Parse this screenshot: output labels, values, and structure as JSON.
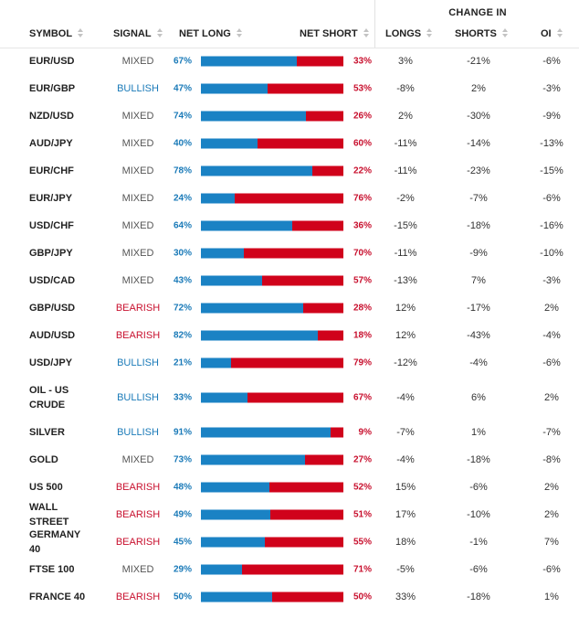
{
  "headers": {
    "change_in": "CHANGE IN",
    "symbol": "SYMBOL",
    "signal": "SIGNAL",
    "net_long": "NET LONG",
    "net_short": "NET SHORT",
    "longs": "LONGS",
    "shorts": "SHORTS",
    "oi": "OI"
  },
  "colors": {
    "long": "#1a82c4",
    "short": "#d0021b",
    "bullish": "#1a7ab8",
    "bearish": "#c8102e",
    "mixed": "#555555"
  },
  "rows": [
    {
      "symbol": "EUR/USD",
      "signal": "MIXED",
      "net_long": "67%",
      "net_long_value": 67,
      "net_short": "33%",
      "longs": "3%",
      "shorts": "-21%",
      "oi": "-6%"
    },
    {
      "symbol": "EUR/GBP",
      "signal": "BULLISH",
      "net_long": "47%",
      "net_long_value": 47,
      "net_short": "53%",
      "longs": "-8%",
      "shorts": "2%",
      "oi": "-3%"
    },
    {
      "symbol": "NZD/USD",
      "signal": "MIXED",
      "net_long": "74%",
      "net_long_value": 74,
      "net_short": "26%",
      "longs": "2%",
      "shorts": "-30%",
      "oi": "-9%"
    },
    {
      "symbol": "AUD/JPY",
      "signal": "MIXED",
      "net_long": "40%",
      "net_long_value": 40,
      "net_short": "60%",
      "longs": "-11%",
      "shorts": "-14%",
      "oi": "-13%"
    },
    {
      "symbol": "EUR/CHF",
      "signal": "MIXED",
      "net_long": "78%",
      "net_long_value": 78,
      "net_short": "22%",
      "longs": "-11%",
      "shorts": "-23%",
      "oi": "-15%"
    },
    {
      "symbol": "EUR/JPY",
      "signal": "MIXED",
      "net_long": "24%",
      "net_long_value": 24,
      "net_short": "76%",
      "longs": "-2%",
      "shorts": "-7%",
      "oi": "-6%"
    },
    {
      "symbol": "USD/CHF",
      "signal": "MIXED",
      "net_long": "64%",
      "net_long_value": 64,
      "net_short": "36%",
      "longs": "-15%",
      "shorts": "-18%",
      "oi": "-16%"
    },
    {
      "symbol": "GBP/JPY",
      "signal": "MIXED",
      "net_long": "30%",
      "net_long_value": 30,
      "net_short": "70%",
      "longs": "-11%",
      "shorts": "-9%",
      "oi": "-10%"
    },
    {
      "symbol": "USD/CAD",
      "signal": "MIXED",
      "net_long": "43%",
      "net_long_value": 43,
      "net_short": "57%",
      "longs": "-13%",
      "shorts": "7%",
      "oi": "-3%"
    },
    {
      "symbol": "GBP/USD",
      "signal": "BEARISH",
      "net_long": "72%",
      "net_long_value": 72,
      "net_short": "28%",
      "longs": "12%",
      "shorts": "-17%",
      "oi": "2%"
    },
    {
      "symbol": "AUD/USD",
      "signal": "BEARISH",
      "net_long": "82%",
      "net_long_value": 82,
      "net_short": "18%",
      "longs": "12%",
      "shorts": "-43%",
      "oi": "-4%"
    },
    {
      "symbol": "USD/JPY",
      "signal": "BULLISH",
      "net_long": "21%",
      "net_long_value": 21,
      "net_short": "79%",
      "longs": "-12%",
      "shorts": "-4%",
      "oi": "-6%"
    },
    {
      "symbol": "OIL - US CRUDE",
      "signal": "BULLISH",
      "net_long": "33%",
      "net_long_value": 33,
      "net_short": "67%",
      "longs": "-4%",
      "shorts": "6%",
      "oi": "2%",
      "tall": true
    },
    {
      "symbol": "SILVER",
      "signal": "BULLISH",
      "net_long": "91%",
      "net_long_value": 91,
      "net_short": "9%",
      "longs": "-7%",
      "shorts": "1%",
      "oi": "-7%"
    },
    {
      "symbol": "GOLD",
      "signal": "MIXED",
      "net_long": "73%",
      "net_long_value": 73,
      "net_short": "27%",
      "longs": "-4%",
      "shorts": "-18%",
      "oi": "-8%"
    },
    {
      "symbol": "US 500",
      "signal": "BEARISH",
      "net_long": "48%",
      "net_long_value": 48,
      "net_short": "52%",
      "longs": "15%",
      "shorts": "-6%",
      "oi": "2%"
    },
    {
      "symbol": "WALL STREET",
      "signal": "BEARISH",
      "net_long": "49%",
      "net_long_value": 49,
      "net_short": "51%",
      "longs": "17%",
      "shorts": "-10%",
      "oi": "2%"
    },
    {
      "symbol": "GERMANY 40",
      "signal": "BEARISH",
      "net_long": "45%",
      "net_long_value": 45,
      "net_short": "55%",
      "longs": "18%",
      "shorts": "-1%",
      "oi": "7%"
    },
    {
      "symbol": "FTSE 100",
      "signal": "MIXED",
      "net_long": "29%",
      "net_long_value": 29,
      "net_short": "71%",
      "longs": "-5%",
      "shorts": "-6%",
      "oi": "-6%"
    },
    {
      "symbol": "FRANCE 40",
      "signal": "BEARISH",
      "net_long": "50%",
      "net_long_value": 50,
      "net_short": "50%",
      "longs": "33%",
      "shorts": "-18%",
      "oi": "1%"
    }
  ]
}
